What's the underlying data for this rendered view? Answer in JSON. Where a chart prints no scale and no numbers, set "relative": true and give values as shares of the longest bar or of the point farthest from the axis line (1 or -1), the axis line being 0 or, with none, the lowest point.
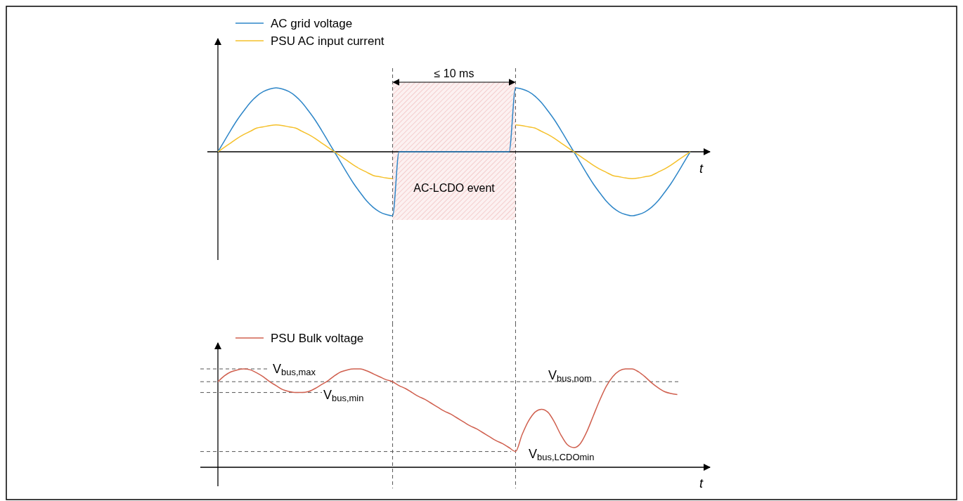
{
  "chart_data": [
    {
      "type": "line",
      "relative": true,
      "xlabel": "t",
      "legend": "top left",
      "categories": [
        null,
        null,
        null,
        null,
        null,
        null,
        null,
        null,
        null,
        null,
        null,
        null,
        null,
        null,
        null,
        null,
        null,
        null,
        null,
        null,
        null,
        null,
        null,
        null,
        null,
        null,
        null,
        null,
        null,
        null,
        null,
        null,
        null,
        null,
        null,
        null,
        null,
        null,
        null,
        null,
        null,
        null,
        null,
        null,
        null,
        null,
        null,
        null,
        null,
        null,
        null,
        null,
        null,
        null,
        null,
        null,
        null,
        null,
        null,
        null,
        null,
        null,
        null,
        null,
        null,
        null,
        null,
        null,
        null,
        null,
        null,
        null,
        null,
        null
      ],
      "series": [
        {
          "name": "AC grid voltage",
          "color": "#2e86c8",
          "values": [
            0,
            0.17,
            0.34,
            0.5,
            0.64,
            0.77,
            0.87,
            0.94,
            0.98,
            1,
            0.98,
            0.94,
            0.87,
            0.77,
            0.64,
            0.5,
            0.34,
            0.17,
            0,
            -0.17,
            -0.34,
            -0.5,
            -0.64,
            -0.77,
            -0.87,
            -0.94,
            -0.98,
            -1,
            0,
            0,
            0,
            0,
            0,
            0,
            0,
            0,
            0,
            0,
            0,
            0,
            0,
            0,
            0,
            0,
            0,
            0,
            1,
            0.98,
            0.94,
            0.87,
            0.77,
            0.64,
            0.5,
            0.34,
            0.17,
            0,
            -0.17,
            -0.34,
            -0.5,
            -0.64,
            -0.77,
            -0.87,
            -0.94,
            -0.98,
            -1,
            -0.98,
            -0.94,
            -0.87,
            -0.77,
            -0.64,
            -0.5,
            -0.34,
            -0.17,
            0
          ]
        },
        {
          "name": "PSU AC input current",
          "color": "#f5c02a",
          "values": [
            0,
            0.07,
            0.14,
            0.21,
            0.27,
            0.32,
            0.37,
            0.39,
            0.41,
            0.42,
            0.41,
            0.39,
            0.37,
            0.32,
            0.27,
            0.21,
            0.14,
            0.07,
            0,
            -0.07,
            -0.14,
            -0.21,
            -0.27,
            -0.32,
            -0.37,
            -0.39,
            -0.41,
            -0.42,
            null,
            null,
            null,
            null,
            null,
            null,
            null,
            null,
            null,
            null,
            null,
            null,
            null,
            null,
            null,
            null,
            null,
            null,
            0.42,
            0.41,
            0.39,
            0.37,
            0.32,
            0.27,
            0.21,
            0.14,
            0.07,
            0,
            -0.07,
            -0.14,
            -0.21,
            -0.27,
            -0.32,
            -0.37,
            -0.39,
            -0.41,
            -0.42,
            -0.41,
            -0.39,
            -0.37,
            -0.32,
            -0.27,
            -0.21,
            -0.14,
            -0.07,
            0
          ]
        }
      ],
      "annotations": [
        "≤ 10 ms",
        "AC-LCDO event"
      ]
    },
    {
      "type": "line",
      "relative": true,
      "xlabel": "t",
      "legend": "top left",
      "categories": [
        null,
        null,
        null,
        null,
        null,
        null,
        null,
        null,
        null,
        null,
        null,
        null,
        null,
        null,
        null,
        null,
        null,
        null,
        null,
        null,
        null,
        null,
        null,
        null,
        null,
        null,
        null,
        null,
        null,
        null,
        null,
        null,
        null,
        null,
        null,
        null,
        null,
        null,
        null,
        null,
        null,
        null,
        null,
        null,
        null,
        null,
        null,
        null,
        null,
        null,
        null,
        null,
        null,
        null,
        null,
        null,
        null,
        null,
        null,
        null,
        null,
        null,
        null,
        null,
        null,
        null,
        null,
        null,
        null,
        null,
        null,
        null,
        null,
        null
      ],
      "series": [
        {
          "name": "PSU Bulk voltage",
          "color": "#d0604f",
          "values": [
            0.87,
            0.93,
            0.97,
            0.99,
            1,
            0.99,
            0.96,
            0.92,
            0.87,
            0.83,
            0.79,
            0.77,
            0.76,
            0.76,
            0.77,
            0.8,
            0.84,
            0.88,
            0.93,
            0.97,
            0.99,
            1,
            1,
            0.98,
            0.95,
            0.92,
            0.89,
            0.87,
            0.83,
            0.8,
            0.76,
            0.72,
            0.69,
            0.65,
            0.61,
            0.57,
            0.54,
            0.5,
            0.46,
            0.42,
            0.39,
            0.35,
            0.31,
            0.27,
            0.24,
            0.2,
            0.16,
            0.33,
            0.47,
            0.56,
            0.59,
            0.56,
            0.46,
            0.33,
            0.23,
            0.2,
            0.24,
            0.36,
            0.52,
            0.68,
            0.82,
            0.92,
            0.98,
            1,
            1,
            0.97,
            0.92,
            0.86,
            0.81,
            0.77,
            0.75,
            0.74,
            null,
            null
          ]
        }
      ],
      "ref_lines": [
        {
          "axis": "y",
          "value": 1,
          "label": "V$_{bus,max}$",
          "line_style": "dashed",
          "color": "#555555"
        },
        {
          "axis": "y",
          "value": 0.87,
          "label": "V$_{bus,nom}$",
          "line_style": "dashed",
          "color": "#555555"
        },
        {
          "axis": "y",
          "value": 0.76,
          "label": "V$_{bus,min}$",
          "line_style": "dashed",
          "color": "#555555"
        },
        {
          "axis": "y",
          "value": 0.16,
          "label": "V$_{bus,LCDOmin}$",
          "line_style": "dashed",
          "color": "#555555"
        }
      ]
    }
  ]
}
